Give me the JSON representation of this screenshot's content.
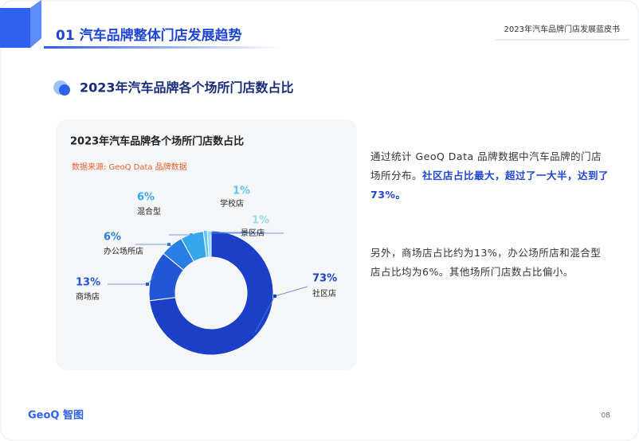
{
  "header": {
    "title": "01 汽车品牌整体门店发展趋势",
    "report": "2023年汽车品牌门店发展蓝皮书"
  },
  "section_title": "2023年汽车品牌各个场所门店数占比",
  "chart_data": {
    "type": "pie",
    "donut": true,
    "title": "2023年汽车品牌各个场所门店数占比",
    "source": "数据来源: GeoQ Data 品牌数据",
    "categories": [
      "社区店",
      "商场店",
      "办公场所店",
      "混合型",
      "学校店",
      "景区店"
    ],
    "values": [
      73,
      13,
      6,
      6,
      1,
      1
    ],
    "value_labels": [
      "73%",
      "13%",
      "6%",
      "6%",
      "1%",
      "1%"
    ],
    "colors": [
      "#1b3fc6",
      "#2156d6",
      "#2b7de6",
      "#38a6ec",
      "#5ec7f0",
      "#92dcf5"
    ]
  },
  "text": {
    "paragraphs": [
      [
        "通过统计 GeoQ Data 品牌数据中汽车品牌的门店场所分布。",
        "社区店占比最大，超过了一大半，达到了73%。"
      ],
      [
        "另外，商场店占比约为13%，办公场所店和混合型店占比均为6%。其他场所门店数占比偏小。"
      ]
    ]
  },
  "footer": {
    "logo": "GeoQ 智图",
    "page": "08"
  }
}
